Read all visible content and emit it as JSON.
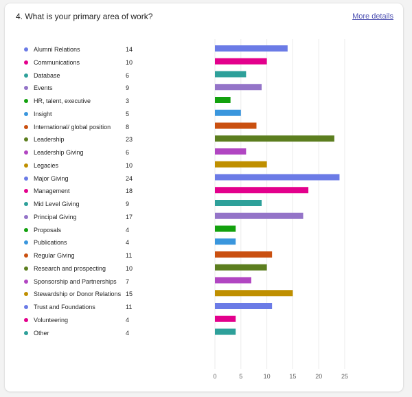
{
  "question": "4. What is your primary area of work?",
  "more_details": "More details",
  "chart_data": {
    "type": "bar",
    "orientation": "horizontal",
    "categories": [
      "Alumni Relations",
      "Communications",
      "Database",
      "Events",
      "HR, talent, executive",
      "Insight",
      "International/ global position",
      "Leadership",
      "Leadership Giving",
      "Legacies",
      "Major Giving",
      "Management",
      "Mid Level Giving",
      "Principal Giving",
      "Proposals",
      "Publications",
      "Regular Giving",
      "Research and prospecting",
      "Sponsorship and Partnerships",
      "Stewardship or Donor Relations",
      "Trust and Foundations",
      "Volunteering",
      "Other"
    ],
    "values": [
      14,
      10,
      6,
      9,
      3,
      5,
      8,
      23,
      6,
      10,
      24,
      18,
      9,
      17,
      4,
      4,
      11,
      10,
      7,
      15,
      11,
      4,
      4
    ],
    "colors": [
      "#6b7be6",
      "#e3008c",
      "#2ea09a",
      "#9474c8",
      "#13a10e",
      "#3a96dd",
      "#ca5010",
      "#5c7e1f",
      "#b146c2",
      "#bf8f00",
      "#6b7be6",
      "#e3008c",
      "#2ea09a",
      "#9474c8",
      "#13a10e",
      "#3a96dd",
      "#ca5010",
      "#5c7e1f",
      "#b146c2",
      "#bf8f00",
      "#6b7be6",
      "#e3008c",
      "#2ea09a"
    ],
    "x_ticks": [
      0,
      5,
      10,
      15,
      20,
      25
    ],
    "xlim": [
      0,
      25
    ],
    "grid": "vertical"
  }
}
